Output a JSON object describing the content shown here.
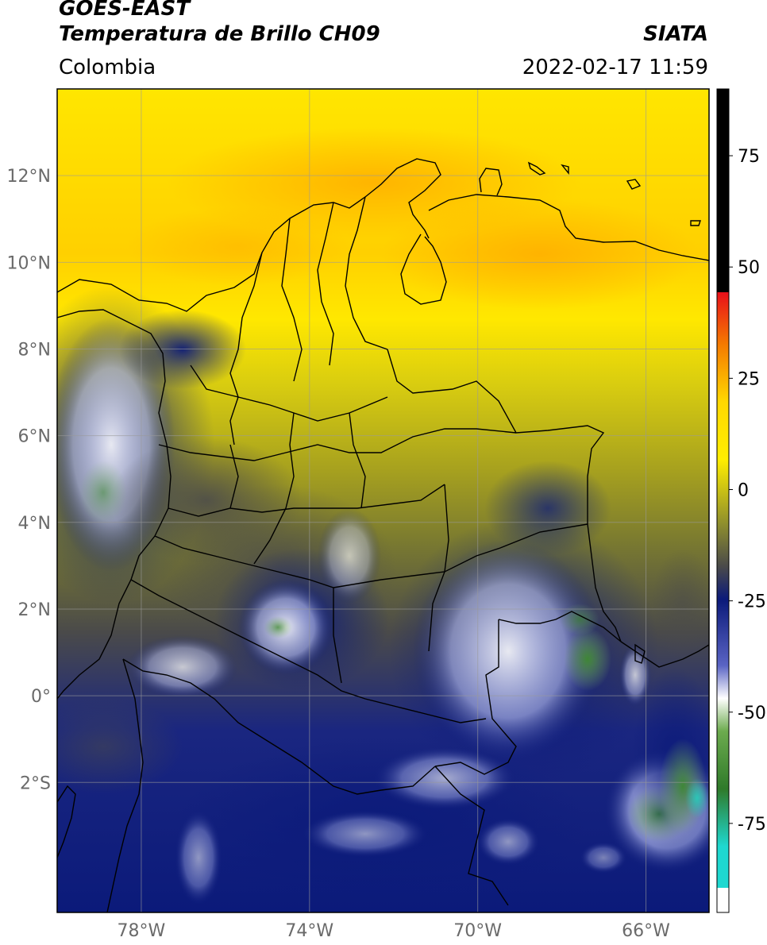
{
  "header": {
    "satellite": "GOES-EAST",
    "product": "Temperatura de Brillo CH09",
    "region": "Colombia",
    "agency": "SIATA",
    "datetime": "2022-02-17 11:59"
  },
  "map": {
    "lon_range": [
      -80,
      -64.5
    ],
    "lat_range": [
      -5,
      14
    ],
    "lat_ticks": [
      {
        "value": 12,
        "label": "12°N"
      },
      {
        "value": 10,
        "label": "10°N"
      },
      {
        "value": 8,
        "label": "8°N"
      },
      {
        "value": 6,
        "label": "6°N"
      },
      {
        "value": 4,
        "label": "4°N"
      },
      {
        "value": 2,
        "label": "2°N"
      },
      {
        "value": 0,
        "label": "0°"
      },
      {
        "value": -2,
        "label": "2°S"
      }
    ],
    "lon_ticks": [
      {
        "value": -78,
        "label": "78°W"
      },
      {
        "value": -74,
        "label": "74°W"
      },
      {
        "value": -70,
        "label": "70°W"
      },
      {
        "value": -66,
        "label": "66°W"
      }
    ],
    "grid": true
  },
  "colorbar": {
    "min": -95,
    "max": 90,
    "ticks": [
      {
        "value": 75,
        "label": "75"
      },
      {
        "value": 50,
        "label": "50"
      },
      {
        "value": 25,
        "label": "25"
      },
      {
        "value": 0,
        "label": "0"
      },
      {
        "value": -25,
        "label": "-25"
      },
      {
        "value": -50,
        "label": "-50"
      },
      {
        "value": -75,
        "label": "-75"
      }
    ],
    "colors": {
      "black": "#000000",
      "red": "#e8301a",
      "orange": "#f58a00",
      "yellow": "#ffee00",
      "olive": "#8c8c2e",
      "gray": "#4a4a4a",
      "navy": "#0b1a7a",
      "white": "#ffffff",
      "green": "#3f8a32",
      "cyan": "#1fd8d0"
    }
  }
}
